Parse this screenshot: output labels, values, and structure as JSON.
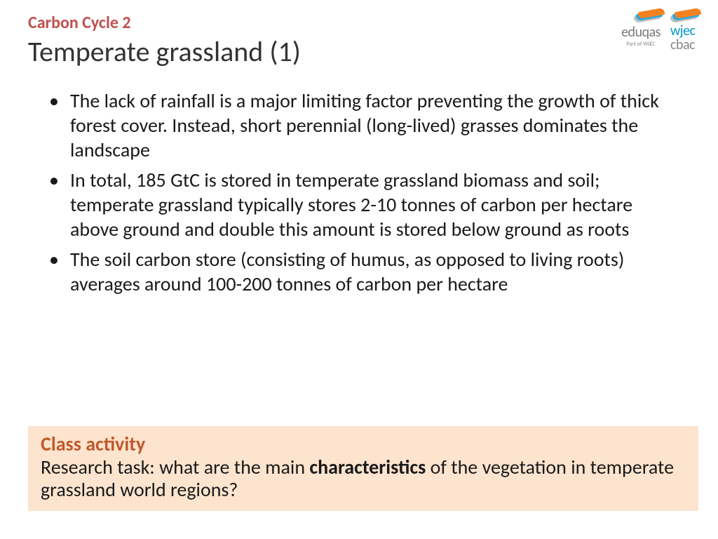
{
  "header": {
    "subtitle": "Carbon Cycle 2",
    "title": "Temperate grassland (1)"
  },
  "logos": {
    "eduqas": {
      "text": "eduqas",
      "sub": "Part of WJEC"
    },
    "wjec": {
      "line1": "wjec",
      "line2": "cbac"
    },
    "swoosh_colors": [
      "#bfbfbf",
      "#2aa8e0",
      "#f58220"
    ]
  },
  "bullets": [
    "The lack of rainfall is a major limiting factor preventing the growth of thick forest cover.  Instead, short perennial (long-lived) grasses dominates the landscape",
    "In total, 185 GtC is stored in temperate grassland biomass and soil; temperate grassland typically stores 2-10 tonnes of carbon per hectare above ground and double this amount is stored below ground as roots",
    "The soil carbon store (consisting of humus, as opposed to living roots) averages around 100-200 tonnes of carbon per hectare"
  ],
  "activity": {
    "title": "Class activity",
    "text_pre": "Research task: what are the main ",
    "text_bold": "characteristics",
    "text_post": " of the vegetation in temperate grassland world regions?",
    "bg_color": "#fde4cf",
    "title_color": "#c05a2a"
  },
  "styling": {
    "subtitle_color": "#c0504d",
    "title_color": "#333333",
    "body_color": "#1a1a1a",
    "background": "#ffffff",
    "subtitle_fontsize": 24,
    "title_fontsize": 40,
    "body_fontsize": 28
  }
}
